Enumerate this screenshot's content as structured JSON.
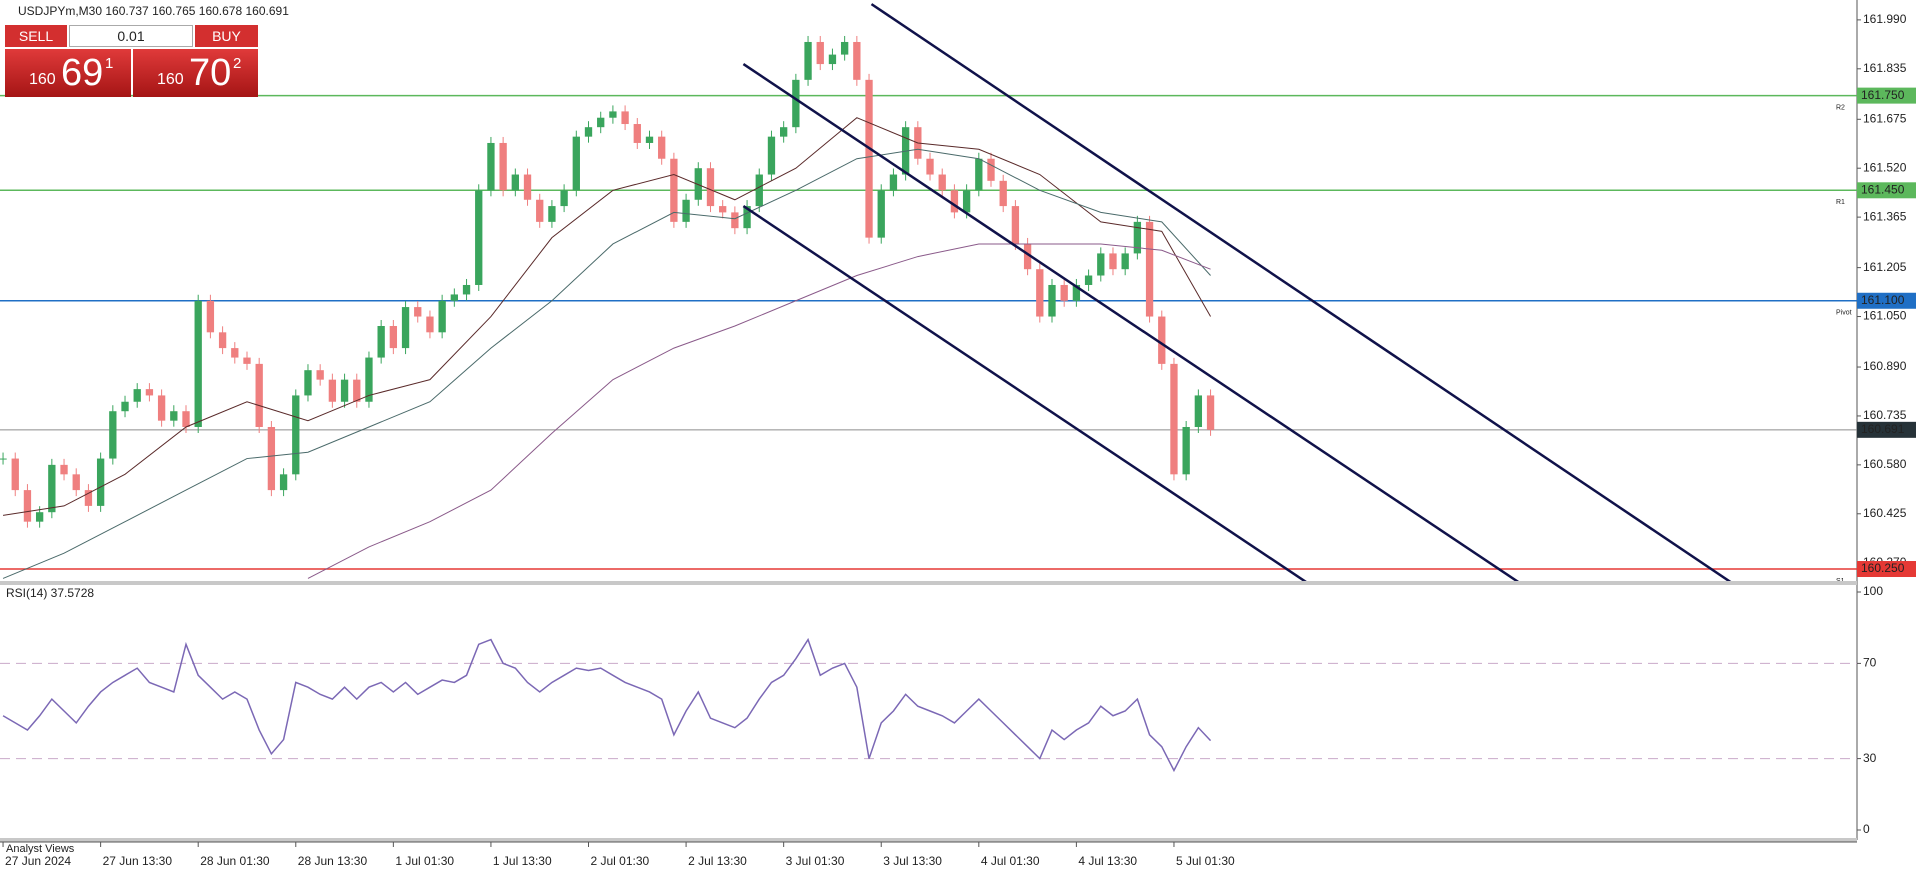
{
  "header": {
    "symbol_info": "USDJPYm,M30  160.737 160.765 160.678 160.691"
  },
  "trade_panel": {
    "sell": "SELL",
    "buy": "BUY",
    "lot": "0.01",
    "sell_big": "160",
    "sell_main": "69",
    "sell_sup": "1",
    "buy_big": "160",
    "buy_main": "70",
    "buy_sup": "2"
  },
  "footer": {
    "analyst": "Analyst Views"
  },
  "chart_data": [
    {
      "type": "candlestick",
      "up_color": "#3aa55d",
      "down_color": "#ef7f7f",
      "values": [
        160.6,
        160.5,
        160.4,
        160.43,
        160.58,
        160.55,
        160.5,
        160.45,
        160.6,
        160.75,
        160.78,
        160.82,
        160.8,
        160.72,
        160.75,
        160.7,
        161.1,
        161.0,
        160.95,
        160.92,
        160.9,
        160.7,
        160.5,
        160.55,
        160.8,
        160.88,
        160.85,
        160.78,
        160.85,
        160.78,
        160.92,
        161.02,
        160.95,
        161.08,
        161.05,
        161.0,
        161.1,
        161.12,
        161.15,
        161.45,
        161.6,
        161.45,
        161.5,
        161.42,
        161.35,
        161.4,
        161.45,
        161.62,
        161.65,
        161.68,
        161.7,
        161.66,
        161.6,
        161.62,
        161.55,
        161.35,
        161.42,
        161.52,
        161.4,
        161.38,
        161.33,
        161.4,
        161.5,
        161.62,
        161.65,
        161.8,
        161.92,
        161.85,
        161.88,
        161.92,
        161.8,
        161.3,
        161.45,
        161.5,
        161.65,
        161.55,
        161.5,
        161.45,
        161.38,
        161.45,
        161.55,
        161.48,
        161.4,
        161.28,
        161.2,
        161.05,
        161.15,
        161.1,
        161.15,
        161.18,
        161.25,
        161.2,
        161.25,
        161.35,
        161.05,
        160.9,
        160.55,
        160.7,
        160.8,
        160.691
      ],
      "xlim": [
        -0.25,
        152
      ],
      "xticks": [
        {
          "value": 0,
          "label": "27 Jun 2024"
        },
        {
          "value": 8,
          "label": "27 Jun 13:30"
        },
        {
          "value": 16,
          "label": "28 Jun 01:30"
        },
        {
          "value": 24,
          "label": "28 Jun 13:30"
        },
        {
          "value": 32,
          "label": "1 Jul 01:30"
        },
        {
          "value": 40,
          "label": "1 Jul 13:30"
        },
        {
          "value": 48,
          "label": "2 Jul 01:30"
        },
        {
          "value": 56,
          "label": "2 Jul 13:30"
        },
        {
          "value": 64,
          "label": "3 Jul 01:30"
        },
        {
          "value": 72,
          "label": "3 Jul 13:30"
        },
        {
          "value": 80,
          "label": "4 Jul 01:30"
        },
        {
          "value": 88,
          "label": "4 Jul 13:30"
        },
        {
          "value": 96,
          "label": "5 Jul 01:30"
        }
      ],
      "ylim": [
        160.212,
        162.053
      ],
      "yticks": [
        {
          "value": 161.99,
          "label": "161.990"
        },
        {
          "value": 161.835,
          "label": "161.835"
        },
        {
          "value": 161.675,
          "label": "161.675"
        },
        {
          "value": 161.52,
          "label": "161.520"
        },
        {
          "value": 161.365,
          "label": "161.365"
        },
        {
          "value": 161.205,
          "label": "161.205"
        },
        {
          "value": 161.05,
          "label": "161.050"
        },
        {
          "value": 160.89,
          "label": "160.890"
        },
        {
          "value": 160.735,
          "label": "160.735"
        },
        {
          "value": 160.58,
          "label": "160.580"
        },
        {
          "value": 160.425,
          "label": "160.425"
        },
        {
          "value": 160.27,
          "label": "160.270"
        }
      ],
      "levels": [
        {
          "value": 161.75,
          "label": "161.750",
          "color": "#5cb85c",
          "tag": "R2"
        },
        {
          "value": 161.45,
          "label": "161.450",
          "color": "#5cb85c",
          "tag": "R1"
        },
        {
          "value": 161.1,
          "label": "161.100",
          "color": "#1f6fc5",
          "tag": "Pivot"
        },
        {
          "value": 160.691,
          "label": "160.691",
          "color": "#8c8c8c"
        },
        {
          "value": 160.25,
          "label": "160.250",
          "color": "#e53935",
          "tag": "S1"
        }
      ],
      "moving_averages": [
        {
          "color": "#5a2a2a",
          "x": [
            0,
            5,
            10,
            15,
            20,
            25,
            30,
            35,
            40,
            45,
            50,
            55,
            60,
            65,
            70,
            75,
            80,
            85,
            90,
            95,
            99
          ],
          "values": [
            160.42,
            160.45,
            160.55,
            160.7,
            160.78,
            160.72,
            160.8,
            160.85,
            161.05,
            161.3,
            161.45,
            161.5,
            161.42,
            161.52,
            161.68,
            161.6,
            161.58,
            161.5,
            161.35,
            161.32,
            161.05
          ]
        },
        {
          "color": "#4a6a6a",
          "x": [
            0,
            5,
            10,
            15,
            20,
            25,
            30,
            35,
            40,
            45,
            50,
            55,
            60,
            65,
            70,
            75,
            80,
            85,
            90,
            95,
            99
          ],
          "values": [
            160.22,
            160.3,
            160.4,
            160.5,
            160.6,
            160.62,
            160.7,
            160.78,
            160.95,
            161.1,
            161.28,
            161.38,
            161.36,
            161.45,
            161.55,
            161.58,
            161.55,
            161.45,
            161.38,
            161.35,
            161.18
          ]
        },
        {
          "color": "#8a5a8a",
          "x": [
            0,
            5,
            10,
            15,
            20,
            25,
            30,
            35,
            40,
            45,
            50,
            55,
            60,
            65,
            70,
            75,
            80,
            85,
            90,
            95,
            99
          ],
          "values": [
            null,
            null,
            null,
            null,
            null,
            160.22,
            160.32,
            160.4,
            160.5,
            160.68,
            160.85,
            160.95,
            161.02,
            161.1,
            161.18,
            161.24,
            161.28,
            161.28,
            161.28,
            161.26,
            161.2
          ]
        }
      ],
      "trendlines": [
        {
          "color": "#10124a",
          "x": [
            71.2,
            141.7
          ],
          "y": [
            162.04,
            160.207
          ]
        },
        {
          "color": "#10124a",
          "x": [
            60.7,
            124.3
          ],
          "y": [
            161.85,
            160.207
          ]
        },
        {
          "color": "#10124a",
          "x": [
            60.7,
            106.9
          ],
          "y": [
            161.4,
            160.207
          ]
        }
      ]
    },
    {
      "type": "line",
      "title": "RSI(14) 37.5728",
      "color": "#7b68b5",
      "values": [
        48,
        45,
        42,
        48,
        55,
        50,
        45,
        52,
        58,
        62,
        65,
        68,
        62,
        60,
        58,
        78,
        65,
        60,
        55,
        58,
        55,
        42,
        32,
        38,
        62,
        60,
        57,
        55,
        60,
        55,
        60,
        62,
        58,
        62,
        57,
        60,
        63,
        62,
        65,
        78,
        80,
        70,
        68,
        62,
        58,
        62,
        65,
        68,
        67,
        68,
        65,
        62,
        60,
        58,
        55,
        40,
        50,
        58,
        47,
        45,
        43,
        47,
        55,
        62,
        65,
        72,
        80,
        65,
        68,
        70,
        60,
        30,
        45,
        50,
        57,
        52,
        50,
        48,
        45,
        50,
        55,
        50,
        45,
        40,
        35,
        30,
        42,
        38,
        42,
        45,
        52,
        48,
        50,
        55,
        40,
        35,
        25,
        35,
        43,
        37.57
      ],
      "xlim": [
        -0.25,
        152
      ],
      "ylim": [
        0,
        100
      ],
      "yticks": [
        100,
        70,
        30,
        0
      ]
    }
  ]
}
